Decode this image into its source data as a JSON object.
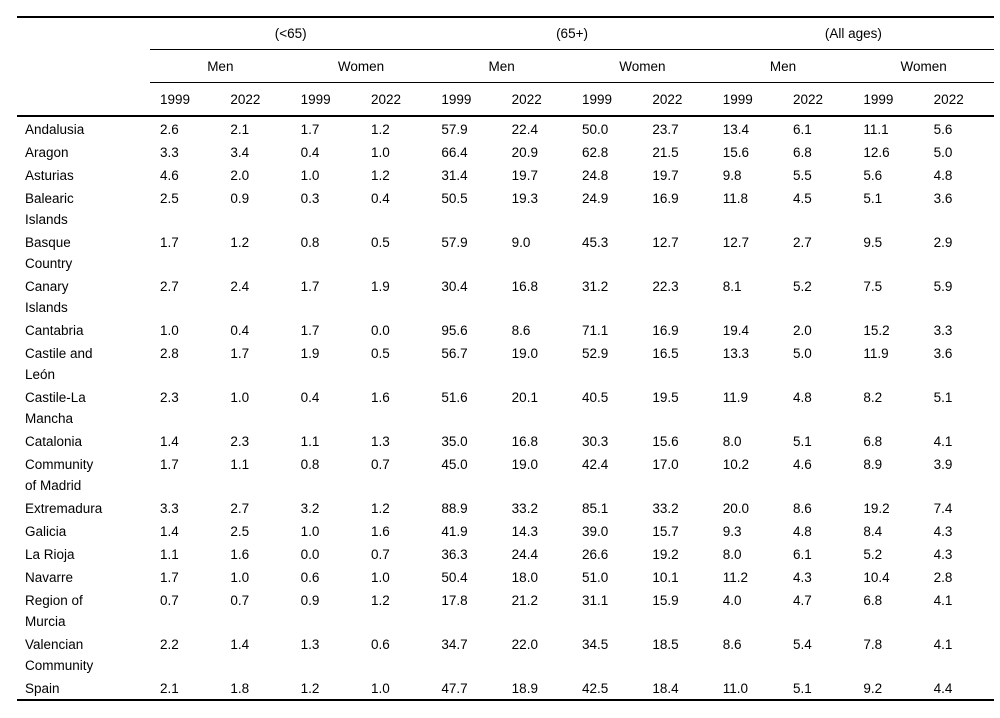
{
  "table": {
    "age_groups": [
      {
        "label": "(<65)"
      },
      {
        "label": "(65+)"
      },
      {
        "label": "(All ages)"
      }
    ],
    "sex_labels": [
      "Men",
      "Women",
      "Men",
      "Women",
      "Men",
      "Women"
    ],
    "year_labels": [
      "1999",
      "2022",
      "1999",
      "2022",
      "1999",
      "2022",
      "1999",
      "2022",
      "1999",
      "2022",
      "1999",
      "2022"
    ],
    "rows": [
      {
        "region": "Andalusia",
        "values": [
          "2.6",
          "2.1",
          "1.7",
          "1.2",
          "57.9",
          "22.4",
          "50.0",
          "23.7",
          "13.4",
          "6.1",
          "11.1",
          "5.6"
        ]
      },
      {
        "region": "Aragon",
        "values": [
          "3.3",
          "3.4",
          "0.4",
          "1.0",
          "66.4",
          "20.9",
          "62.8",
          "21.5",
          "15.6",
          "6.8",
          "12.6",
          "5.0"
        ]
      },
      {
        "region": "Asturias",
        "values": [
          "4.6",
          "2.0",
          "1.0",
          "1.2",
          "31.4",
          "19.7",
          "24.8",
          "19.7",
          "9.8",
          "5.5",
          "5.6",
          "4.8"
        ]
      },
      {
        "region": "Balearic Islands",
        "values": [
          "2.5",
          "0.9",
          "0.3",
          "0.4",
          "50.5",
          "19.3",
          "24.9",
          "16.9",
          "11.8",
          "4.5",
          "5.1",
          "3.6"
        ]
      },
      {
        "region": "Basque Country",
        "values": [
          "1.7",
          "1.2",
          "0.8",
          "0.5",
          "57.9",
          "9.0",
          "45.3",
          "12.7",
          "12.7",
          "2.7",
          "9.5",
          "2.9"
        ]
      },
      {
        "region": "Canary Islands",
        "values": [
          "2.7",
          "2.4",
          "1.7",
          "1.9",
          "30.4",
          "16.8",
          "31.2",
          "22.3",
          "8.1",
          "5.2",
          "7.5",
          "5.9"
        ]
      },
      {
        "region": "Cantabria",
        "values": [
          "1.0",
          "0.4",
          "1.7",
          "0.0",
          "95.6",
          "8.6",
          "71.1",
          "16.9",
          "19.4",
          "2.0",
          "15.2",
          "3.3"
        ]
      },
      {
        "region": "Castile and León",
        "values": [
          "2.8",
          "1.7",
          "1.9",
          "0.5",
          "56.7",
          "19.0",
          "52.9",
          "16.5",
          "13.3",
          "5.0",
          "11.9",
          "3.6"
        ]
      },
      {
        "region": "Castile-La Mancha",
        "values": [
          "2.3",
          "1.0",
          "0.4",
          "1.6",
          "51.6",
          "20.1",
          "40.5",
          "19.5",
          "11.9",
          "4.8",
          "8.2",
          "5.1"
        ]
      },
      {
        "region": "Catalonia",
        "values": [
          "1.4",
          "2.3",
          "1.1",
          "1.3",
          "35.0",
          "16.8",
          "30.3",
          "15.6",
          "8.0",
          "5.1",
          "6.8",
          "4.1"
        ]
      },
      {
        "region": "Community of Madrid",
        "values": [
          "1.7",
          "1.1",
          "0.8",
          "0.7",
          "45.0",
          "19.0",
          "42.4",
          "17.0",
          "10.2",
          "4.6",
          "8.9",
          "3.9"
        ]
      },
      {
        "region": "Extremadura",
        "values": [
          "3.3",
          "2.7",
          "3.2",
          "1.2",
          "88.9",
          "33.2",
          "85.1",
          "33.2",
          "20.0",
          "8.6",
          "19.2",
          "7.4"
        ]
      },
      {
        "region": "Galicia",
        "values": [
          "1.4",
          "2.5",
          "1.0",
          "1.6",
          "41.9",
          "14.3",
          "39.0",
          "15.7",
          "9.3",
          "4.8",
          "8.4",
          "4.3"
        ]
      },
      {
        "region": "La Rioja",
        "values": [
          "1.1",
          "1.6",
          "0.0",
          "0.7",
          "36.3",
          "24.4",
          "26.6",
          "19.2",
          "8.0",
          "6.1",
          "5.2",
          "4.3"
        ]
      },
      {
        "region": "Navarre",
        "values": [
          "1.7",
          "1.0",
          "0.6",
          "1.0",
          "50.4",
          "18.0",
          "51.0",
          "10.1",
          "11.2",
          "4.3",
          "10.4",
          "2.8"
        ]
      },
      {
        "region": "Region of Murcia",
        "values": [
          "0.7",
          "0.7",
          "0.9",
          "1.2",
          "17.8",
          "21.2",
          "31.1",
          "15.9",
          "4.0",
          "4.7",
          "6.8",
          "4.1"
        ]
      },
      {
        "region": "Valencian Community",
        "values": [
          "2.2",
          "1.4",
          "1.3",
          "0.6",
          "34.7",
          "22.0",
          "34.5",
          "18.5",
          "8.6",
          "5.4",
          "7.8",
          "4.1"
        ]
      },
      {
        "region": "Spain",
        "values": [
          "2.1",
          "1.8",
          "1.2",
          "1.0",
          "47.7",
          "18.9",
          "42.5",
          "18.4",
          "11.0",
          "5.1",
          "9.2",
          "4.4"
        ]
      }
    ]
  },
  "colors": {
    "text": "#000000",
    "rule": "#000000",
    "background": "#ffffff"
  }
}
